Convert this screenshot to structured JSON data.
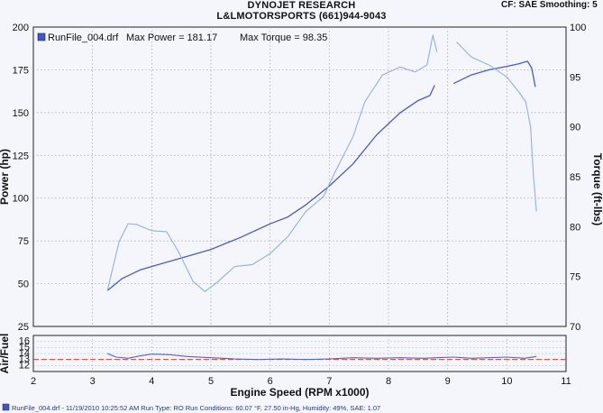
{
  "header": {
    "title": "DYNOJET RESEARCH",
    "subtitle": "L&LMOTORSPORTS (661)944-9043",
    "corner": "CF: SAE  Smoothing: 5"
  },
  "colors": {
    "power": "#4a5cc4",
    "torque": "#8fb0e6",
    "afr": "#5566c0",
    "afr_ref": "#d9402a",
    "grid": "#9aa0aa",
    "background": "#f4f6fb"
  },
  "chart_data": [
    {
      "type": "line",
      "legend": {
        "run": "RunFile_004.drf",
        "max_power_label": "Max Power = 181.17",
        "max_torque_label": "Max Torque = 98.35",
        "icon": "square-icon"
      },
      "xlabel": "Engine Speed (RPM x1000)",
      "ylabel": "Power (hp)",
      "y2label": "Torque (ft-lbs)",
      "xlim": [
        2,
        11
      ],
      "ylim": [
        25,
        200
      ],
      "y2lim": [
        70,
        100
      ],
      "xticks": [
        "2",
        "3",
        "4",
        "5",
        "6",
        "7",
        "8",
        "9",
        "10",
        "11"
      ],
      "yticks": [
        "25",
        "50",
        "75",
        "100",
        "125",
        "150",
        "175",
        "200"
      ],
      "y2ticks": [
        "70",
        "75",
        "80",
        "85",
        "90",
        "95",
        "100"
      ],
      "grid": true,
      "series": [
        {
          "name": "Power",
          "axis": "left",
          "segments": [
            [
              [
                3.25,
                46
              ],
              [
                3.5,
                53
              ],
              [
                3.8,
                58
              ],
              [
                4.2,
                62
              ],
              [
                4.6,
                66
              ],
              [
                5.0,
                70
              ],
              [
                5.5,
                77
              ],
              [
                6.0,
                85
              ],
              [
                6.3,
                89
              ],
              [
                6.6,
                96
              ],
              [
                7.0,
                107
              ],
              [
                7.4,
                120
              ],
              [
                7.8,
                137
              ],
              [
                8.2,
                150
              ],
              [
                8.5,
                157
              ],
              [
                8.7,
                160
              ],
              [
                8.78,
                166
              ]
            ],
            [
              [
                9.1,
                167
              ],
              [
                9.4,
                172
              ],
              [
                9.7,
                175
              ],
              [
                10.0,
                177
              ],
              [
                10.2,
                178.5
              ],
              [
                10.35,
                180
              ],
              [
                10.42,
                176
              ],
              [
                10.48,
                165
              ]
            ]
          ]
        },
        {
          "name": "Torque",
          "axis": "right",
          "segments": [
            [
              [
                3.25,
                73.6
              ],
              [
                3.45,
                78.5
              ],
              [
                3.6,
                80.3
              ],
              [
                3.75,
                80.2
              ],
              [
                4.0,
                79.6
              ],
              [
                4.25,
                79.5
              ],
              [
                4.45,
                77.5
              ],
              [
                4.7,
                74.5
              ],
              [
                4.9,
                73.5
              ],
              [
                5.1,
                74.4
              ],
              [
                5.4,
                76.0
              ],
              [
                5.7,
                76.2
              ],
              [
                6.0,
                77.3
              ],
              [
                6.3,
                79.0
              ],
              [
                6.6,
                81.5
              ],
              [
                6.9,
                83.0
              ],
              [
                7.1,
                85.5
              ],
              [
                7.4,
                89.0
              ],
              [
                7.6,
                92.5
              ],
              [
                7.9,
                95.2
              ],
              [
                8.2,
                96.0
              ],
              [
                8.45,
                95.5
              ],
              [
                8.65,
                96.2
              ],
              [
                8.75,
                99.2
              ],
              [
                8.82,
                97.5
              ]
            ],
            [
              [
                9.15,
                98.5
              ],
              [
                9.4,
                97.0
              ],
              [
                9.7,
                96.2
              ],
              [
                10.0,
                95.0
              ],
              [
                10.2,
                93.5
              ],
              [
                10.32,
                92.5
              ],
              [
                10.4,
                90.0
              ],
              [
                10.45,
                85.0
              ],
              [
                10.5,
                81.5
              ]
            ]
          ]
        }
      ]
    },
    {
      "type": "line",
      "ylabel": "Air/Fuel",
      "xlim": [
        2,
        11
      ],
      "ylim": [
        11,
        17
      ],
      "yticks": [
        "12",
        "13",
        "14",
        "15",
        "16"
      ],
      "reference_value": 13.0,
      "series": [
        {
          "name": "Air/Fuel",
          "x": [
            3.25,
            3.4,
            3.6,
            3.8,
            4.0,
            4.3,
            4.6,
            5.0,
            5.4,
            5.8,
            6.2,
            6.6,
            7.0,
            7.4,
            7.8,
            8.2,
            8.6,
            8.8,
            9.1,
            9.4,
            9.7,
            10.0,
            10.3,
            10.5
          ],
          "y": [
            14.0,
            13.4,
            13.2,
            13.6,
            13.9,
            13.8,
            13.5,
            13.3,
            13.1,
            13.0,
            13.1,
            13.0,
            13.1,
            13.3,
            13.2,
            13.3,
            13.2,
            13.3,
            13.4,
            13.2,
            13.3,
            13.4,
            13.2,
            13.5
          ]
        }
      ]
    }
  ],
  "footer": {
    "icon": "square-icon",
    "text": "RunFile_004.drf - 11/19/2010 10:25:52 AM  Run Type: RO  Run Conditions: 60.07 °F, 27.50 in-Hg,  Humidity:  49%, SAE: 1.07"
  }
}
